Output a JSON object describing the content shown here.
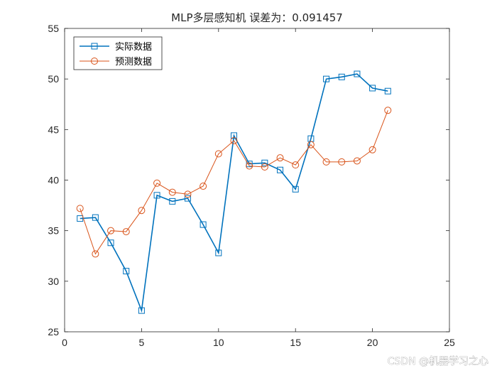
{
  "chart_data": {
    "type": "line",
    "title": "MLP多层感知机   误差为：0.091457",
    "xlabel": "",
    "ylabel": "",
    "xlim": [
      0,
      25
    ],
    "ylim": [
      25,
      55
    ],
    "xticks": [
      0,
      5,
      10,
      15,
      20,
      25
    ],
    "yticks": [
      25,
      30,
      35,
      40,
      45,
      50,
      55
    ],
    "grid": false,
    "legend_position": "top-left",
    "x": [
      1,
      2,
      3,
      4,
      5,
      6,
      7,
      8,
      9,
      10,
      11,
      12,
      13,
      14,
      15,
      16,
      17,
      18,
      19,
      20,
      21
    ],
    "series": [
      {
        "name": "实际数据",
        "color": "#0072BD",
        "marker": "square",
        "values": [
          36.2,
          36.3,
          33.8,
          31.0,
          27.1,
          38.5,
          37.9,
          38.2,
          35.6,
          32.8,
          44.4,
          41.6,
          41.7,
          41.0,
          39.1,
          44.1,
          50.0,
          50.2,
          50.5,
          49.1,
          48.8
        ]
      },
      {
        "name": "预测数据",
        "color": "#D95319",
        "marker": "circle",
        "values": [
          37.2,
          32.7,
          35.0,
          34.9,
          37.0,
          39.7,
          38.8,
          38.6,
          39.4,
          42.6,
          43.9,
          41.4,
          41.3,
          42.2,
          41.5,
          43.5,
          41.8,
          41.8,
          41.9,
          43.0,
          46.9
        ]
      }
    ]
  },
  "watermark": "CSDN @机器学习之心"
}
